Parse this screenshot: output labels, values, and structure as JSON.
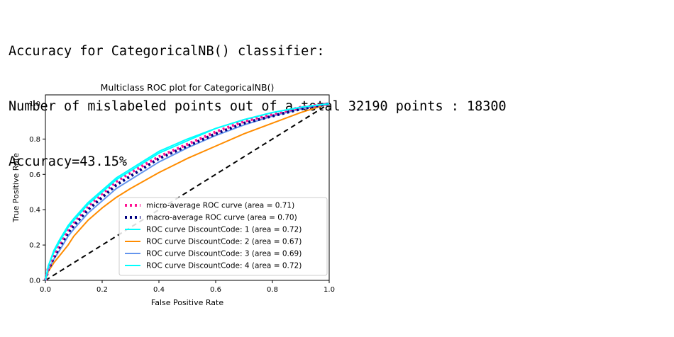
{
  "output": {
    "lines": [
      "Accuracy for CategoricalNB() classifier:",
      "Number of mislabeled points out of a total 32190 points : 18300",
      "Accuracy=43.15%"
    ]
  },
  "chart_data": {
    "type": "line",
    "title": "Multiclass ROC plot for CategoricalNB()",
    "xlabel": "False Positive Rate",
    "ylabel": "True Positive Rate",
    "xlim": [
      0.0,
      1.0
    ],
    "ylim": [
      0.0,
      1.05
    ],
    "x_ticks": [
      "0.0",
      "0.2",
      "0.4",
      "0.6",
      "0.8",
      "1.0"
    ],
    "y_ticks": [
      "0.0",
      "0.2",
      "0.4",
      "0.6",
      "0.8",
      "1.0"
    ],
    "grid": false,
    "legend_position": "lower right",
    "series": [
      {
        "name": "micro-average ROC curve (area = 0.71)",
        "color": "#ff1493",
        "style": "dotted",
        "x": [
          0,
          0.01,
          0.03,
          0.05,
          0.08,
          0.1,
          0.15,
          0.2,
          0.25,
          0.3,
          0.4,
          0.5,
          0.6,
          0.7,
          0.8,
          0.9,
          1.0
        ],
        "y": [
          0,
          0.07,
          0.15,
          0.21,
          0.29,
          0.33,
          0.42,
          0.49,
          0.56,
          0.61,
          0.7,
          0.77,
          0.84,
          0.9,
          0.94,
          0.98,
          1.0
        ]
      },
      {
        "name": "macro-average ROC curve (area = 0.70)",
        "color": "#000080",
        "style": "dotted",
        "x": [
          0,
          0.01,
          0.03,
          0.05,
          0.08,
          0.1,
          0.15,
          0.2,
          0.25,
          0.3,
          0.4,
          0.5,
          0.6,
          0.7,
          0.8,
          0.9,
          1.0
        ],
        "y": [
          0,
          0.06,
          0.13,
          0.19,
          0.27,
          0.31,
          0.4,
          0.47,
          0.54,
          0.59,
          0.69,
          0.76,
          0.83,
          0.89,
          0.93,
          0.97,
          1.0
        ]
      },
      {
        "name": "ROC curve DiscountCode: 1 (area = 0.72)",
        "color": "#00ffff",
        "style": "solid",
        "x": [
          0,
          0.01,
          0.03,
          0.05,
          0.08,
          0.1,
          0.15,
          0.2,
          0.25,
          0.3,
          0.4,
          0.5,
          0.6,
          0.7,
          0.8,
          0.9,
          1.0
        ],
        "y": [
          0,
          0.08,
          0.16,
          0.22,
          0.3,
          0.34,
          0.43,
          0.5,
          0.57,
          0.62,
          0.72,
          0.79,
          0.86,
          0.91,
          0.95,
          0.98,
          1.0
        ]
      },
      {
        "name": "ROC curve DiscountCode: 2 (area = 0.67)",
        "color": "#ff8c00",
        "style": "solid",
        "x": [
          0,
          0.01,
          0.03,
          0.05,
          0.08,
          0.1,
          0.15,
          0.2,
          0.25,
          0.3,
          0.4,
          0.5,
          0.6,
          0.7,
          0.8,
          0.9,
          1.0
        ],
        "y": [
          0,
          0.05,
          0.1,
          0.14,
          0.2,
          0.25,
          0.34,
          0.41,
          0.47,
          0.52,
          0.61,
          0.69,
          0.76,
          0.83,
          0.89,
          0.95,
          1.0
        ]
      },
      {
        "name": "ROC curve DiscountCode: 3 (area = 0.69)",
        "color": "#6495ed",
        "style": "solid",
        "x": [
          0,
          0.01,
          0.03,
          0.05,
          0.08,
          0.1,
          0.15,
          0.2,
          0.25,
          0.3,
          0.4,
          0.5,
          0.6,
          0.7,
          0.8,
          0.9,
          1.0
        ],
        "y": [
          0,
          0.06,
          0.12,
          0.17,
          0.25,
          0.29,
          0.38,
          0.45,
          0.52,
          0.57,
          0.67,
          0.75,
          0.82,
          0.88,
          0.93,
          0.97,
          1.0
        ]
      },
      {
        "name": "ROC curve DiscountCode: 4 (area = 0.72)",
        "color": "#00ffff",
        "style": "solid",
        "x": [
          0,
          0.01,
          0.03,
          0.05,
          0.08,
          0.1,
          0.15,
          0.2,
          0.25,
          0.3,
          0.4,
          0.5,
          0.6,
          0.7,
          0.8,
          0.9,
          1.0
        ],
        "y": [
          0,
          0.08,
          0.17,
          0.23,
          0.31,
          0.35,
          0.44,
          0.51,
          0.58,
          0.63,
          0.73,
          0.8,
          0.86,
          0.91,
          0.95,
          0.98,
          1.0
        ]
      }
    ],
    "reference_line": {
      "x": [
        0,
        1
      ],
      "y": [
        0,
        1
      ],
      "color": "#000000",
      "style": "dashed"
    }
  }
}
